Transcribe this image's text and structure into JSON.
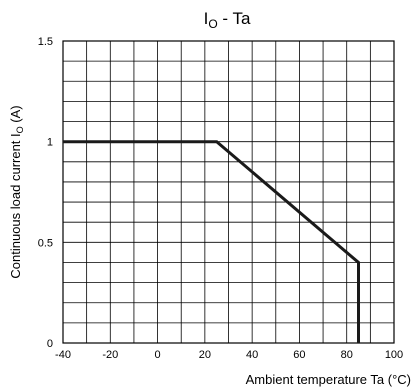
{
  "chart_data": {
    "type": "line",
    "title": {
      "main": "I",
      "sub": "O",
      "rest": " - Ta"
    },
    "xlabel": "Ambient temperature Ta (°C)",
    "ylabel": {
      "main": "Continuous load current I",
      "sub": "O",
      "rest": " (A)"
    },
    "xlim": [
      -40,
      100
    ],
    "ylim": [
      0,
      1.5
    ],
    "x_ticks": [
      -40,
      -20,
      0,
      20,
      40,
      60,
      80,
      100
    ],
    "x_tick_labels": [
      "-40",
      "-20",
      "0",
      "20",
      "40",
      "60",
      "80",
      "100"
    ],
    "y_ticks": [
      0,
      0.5,
      1,
      1.5
    ],
    "y_tick_labels": [
      "0",
      "0.5",
      "1",
      "1.5"
    ],
    "grid": true,
    "grid_minor_x_step": 10,
    "grid_minor_y_step": 0.1,
    "series": [
      {
        "color": "#1a1a1a",
        "x": [
          -40,
          25,
          85,
          85
        ],
        "y": [
          1.0,
          1.0,
          0.4,
          0.0
        ]
      }
    ]
  }
}
